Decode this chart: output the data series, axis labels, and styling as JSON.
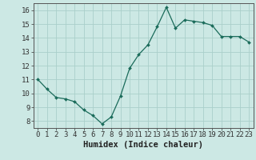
{
  "x": [
    0,
    1,
    2,
    3,
    4,
    5,
    6,
    7,
    8,
    9,
    10,
    11,
    12,
    13,
    14,
    15,
    16,
    17,
    18,
    19,
    20,
    21,
    22,
    23
  ],
  "y": [
    11.0,
    10.3,
    9.7,
    9.6,
    9.4,
    8.8,
    8.4,
    7.8,
    8.3,
    9.8,
    11.8,
    12.8,
    13.5,
    14.8,
    16.2,
    14.7,
    15.3,
    15.2,
    15.1,
    14.9,
    14.1,
    14.1,
    14.1,
    13.7
  ],
  "xlabel": "Humidex (Indice chaleur)",
  "ylim": [
    7.5,
    16.5
  ],
  "xlim": [
    -0.5,
    23.5
  ],
  "yticks": [
    8,
    9,
    10,
    11,
    12,
    13,
    14,
    15,
    16
  ],
  "xticks": [
    0,
    1,
    2,
    3,
    4,
    5,
    6,
    7,
    8,
    9,
    10,
    11,
    12,
    13,
    14,
    15,
    16,
    17,
    18,
    19,
    20,
    21,
    22,
    23
  ],
  "line_color": "#1a6b5a",
  "marker_color": "#1a6b5a",
  "bg_color": "#cce8e4",
  "grid_color": "#aacfca",
  "tick_fontsize": 6.5,
  "label_fontsize": 7.5
}
